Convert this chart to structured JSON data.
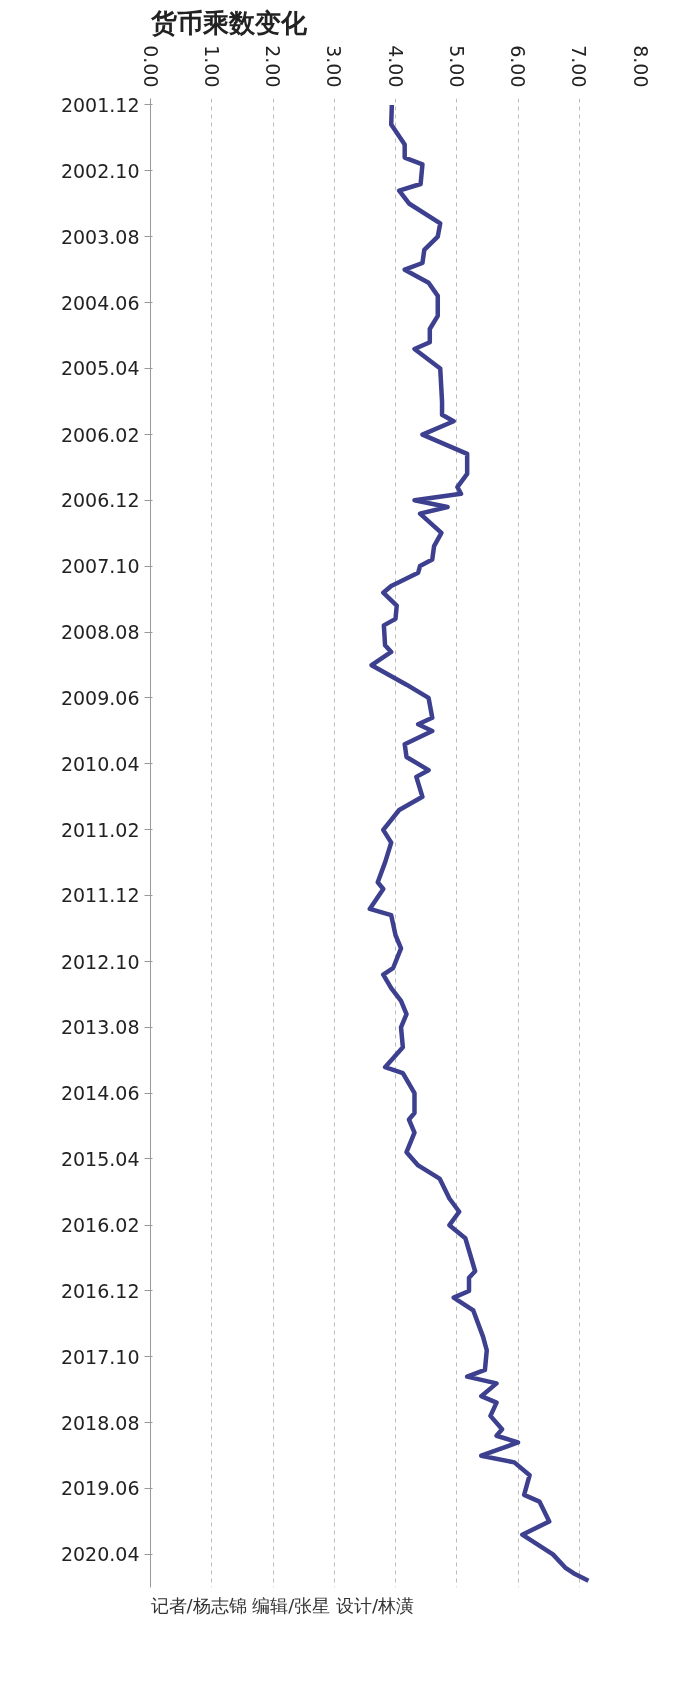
{
  "chart_data": {
    "type": "line",
    "orientation": "horizontal",
    "title": "货币乘数变化",
    "annotations": [
      "记者/杨志锦   编辑/张星   设计/林潢"
    ],
    "x": [
      "2001-12",
      "2002-03",
      "2002-06",
      "2002-08",
      "2002-09",
      "2002-12",
      "2003-01",
      "2003-03",
      "2003-06",
      "2003-08",
      "2003-10",
      "2003-12",
      "2004-01",
      "2004-03",
      "2004-05",
      "2004-08",
      "2004-10",
      "2004-12",
      "2005-01",
      "2005-04",
      "2005-09",
      "2005-11",
      "2005-12",
      "2006-02",
      "2006-05",
      "2006-08",
      "2006-10",
      "2006-11",
      "2006-12",
      "2007-01",
      "2007-02",
      "2007-05",
      "2007-07",
      "2007-09",
      "2007-10",
      "2007-11",
      "2008-01",
      "2008-02",
      "2008-04",
      "2008-06",
      "2008-07",
      "2008-10",
      "2008-11",
      "2009-01",
      "2009-04",
      "2009-06",
      "2009-09",
      "2009-10",
      "2009-11",
      "2010-01",
      "2010-03",
      "2010-05",
      "2010-06",
      "2010-09",
      "2010-11",
      "2011-02",
      "2011-04",
      "2011-07",
      "2011-10",
      "2011-11",
      "2012-02",
      "2012-03",
      "2012-06",
      "2012-08",
      "2012-11",
      "2012-12",
      "2013-02",
      "2013-04",
      "2013-06",
      "2013-08",
      "2013-11",
      "2014-02",
      "2014-03",
      "2014-06",
      "2014-09",
      "2014-10",
      "2014-12",
      "2015-03",
      "2015-05",
      "2015-07",
      "2015-10",
      "2015-12",
      "2016-02",
      "2016-04",
      "2016-09",
      "2016-10",
      "2016-12",
      "2017-01",
      "2017-03",
      "2017-07",
      "2017-09",
      "2017-12",
      "2018-01",
      "2018-02",
      "2018-04",
      "2018-05",
      "2018-07",
      "2018-09",
      "2018-10",
      "2018-11",
      "2019-01",
      "2019-02",
      "2019-04",
      "2019-07",
      "2019-08",
      "2019-11",
      "2020-01",
      "2020-04",
      "2020-06",
      "2020-07",
      "2020-08"
    ],
    "series": [
      {
        "color": "#3d3f8f",
        "values": [
          3.94,
          3.93,
          4.15,
          4.15,
          4.44,
          4.41,
          4.06,
          4.22,
          4.73,
          4.69,
          4.47,
          4.44,
          4.15,
          4.54,
          4.69,
          4.69,
          4.56,
          4.56,
          4.31,
          4.73,
          4.76,
          4.76,
          4.95,
          4.44,
          5.17,
          5.17,
          5.01,
          5.07,
          4.31,
          4.85,
          4.4,
          4.75,
          4.63,
          4.6,
          4.4,
          4.37,
          3.93,
          3.8,
          4.02,
          4.0,
          3.81,
          3.83,
          3.93,
          3.61,
          4.18,
          4.54,
          4.6,
          4.37,
          4.6,
          4.15,
          4.18,
          4.54,
          4.34,
          4.44,
          4.06,
          3.8,
          3.93,
          3.83,
          3.71,
          3.8,
          3.58,
          3.93,
          4.0,
          4.09,
          3.96,
          3.8,
          3.93,
          4.09,
          4.18,
          4.09,
          4.12,
          3.83,
          4.12,
          4.31,
          4.31,
          4.22,
          4.31,
          4.18,
          4.37,
          4.72,
          4.88,
          5.04,
          4.88,
          5.14,
          5.3,
          5.2,
          5.2,
          4.95,
          5.27,
          5.43,
          5.49,
          5.46,
          5.17,
          5.65,
          5.4,
          5.65,
          5.55,
          5.74,
          5.65,
          6.0,
          5.4,
          5.94,
          6.19,
          6.1,
          6.35,
          6.51,
          6.07,
          6.57,
          6.77,
          6.93,
          7.15
        ]
      }
    ],
    "ylim": [
      "2020-09",
      "2001-11"
    ],
    "yticks": [
      {
        "value": "2001-12",
        "label": "2001.12"
      },
      {
        "value": "2002-10",
        "label": "2002.10"
      },
      {
        "value": "2003-08",
        "label": "2003.08"
      },
      {
        "value": "2004-06",
        "label": "2004.06"
      },
      {
        "value": "2005-04",
        "label": "2005.04"
      },
      {
        "value": "2006-02",
        "label": "2006.02"
      },
      {
        "value": "2006-12",
        "label": "2006.12"
      },
      {
        "value": "2007-10",
        "label": "2007.10"
      },
      {
        "value": "2008-08",
        "label": "2008.08"
      },
      {
        "value": "2009-06",
        "label": "2009.06"
      },
      {
        "value": "2010-04",
        "label": "2010.04"
      },
      {
        "value": "2011-02",
        "label": "2011.02"
      },
      {
        "value": "2011-12",
        "label": "2011.12"
      },
      {
        "value": "2012-10",
        "label": "2012.10"
      },
      {
        "value": "2013-08",
        "label": "2013.08"
      },
      {
        "value": "2014-06",
        "label": "2014.06"
      },
      {
        "value": "2015-04",
        "label": "2015.04"
      },
      {
        "value": "2016-02",
        "label": "2016.02"
      },
      {
        "value": "2016-12",
        "label": "2016.12"
      },
      {
        "value": "2017-10",
        "label": "2017.10"
      },
      {
        "value": "2018-08",
        "label": "2018.08"
      },
      {
        "value": "2019-06",
        "label": "2019.06"
      },
      {
        "value": "2020-04",
        "label": "2020.04"
      }
    ],
    "xlim": [
      0,
      8
    ],
    "xticks": [
      {
        "value": 0,
        "label": "0.00"
      },
      {
        "value": 1,
        "label": "1.00"
      },
      {
        "value": 2,
        "label": "2.00"
      },
      {
        "value": 3,
        "label": "3.00"
      },
      {
        "value": 4,
        "label": "4.00"
      },
      {
        "value": 5,
        "label": "5.00"
      },
      {
        "value": 6,
        "label": "6.00"
      },
      {
        "value": 7,
        "label": "7.00"
      },
      {
        "value": 8,
        "label": "8.00"
      }
    ],
    "grid": "x",
    "line_style": "solid"
  }
}
